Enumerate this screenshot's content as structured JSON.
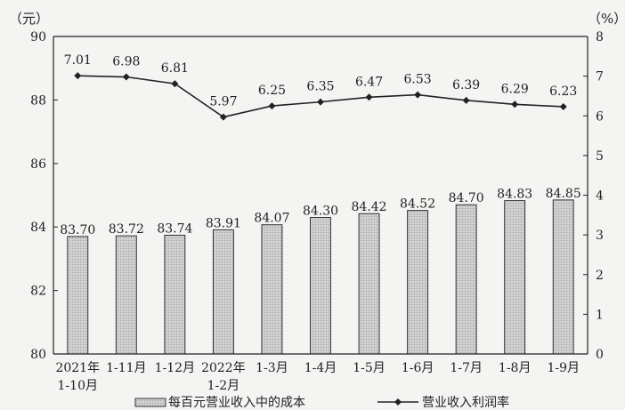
{
  "chart_data": {
    "type": "bar",
    "categories": [
      [
        "2021年",
        "1-10月"
      ],
      [
        "1-11月"
      ],
      [
        "1-12月"
      ],
      [
        "2022年",
        "1-2月"
      ],
      [
        "1-3月"
      ],
      [
        "1-4月"
      ],
      [
        "1-5月"
      ],
      [
        "1-6月"
      ],
      [
        "1-7月"
      ],
      [
        "1-8月"
      ],
      [
        "1-9月"
      ]
    ],
    "left_axis": {
      "unit": "（元）",
      "ylim": [
        80,
        90
      ],
      "ticks": [
        "80",
        "82",
        "84",
        "86",
        "88",
        "90"
      ]
    },
    "right_axis": {
      "unit": "（%）",
      "ylim": [
        0,
        8
      ],
      "ticks": [
        "0",
        "1",
        "2",
        "3",
        "4",
        "5",
        "6",
        "7",
        "8"
      ]
    },
    "series": [
      {
        "name": "每百元营业收入中的成本",
        "type": "bar",
        "axis": "left",
        "values": [
          83.7,
          83.72,
          83.74,
          83.91,
          84.07,
          84.3,
          84.42,
          84.52,
          84.7,
          84.83,
          84.85
        ],
        "labels": [
          "83.70",
          "83.72",
          "83.74",
          "83.91",
          "84.07",
          "84.30",
          "84.42",
          "84.52",
          "84.70",
          "84.83",
          "84.85"
        ]
      },
      {
        "name": "营业收入利润率",
        "type": "line",
        "axis": "right",
        "values": [
          7.01,
          6.98,
          6.81,
          5.97,
          6.25,
          6.35,
          6.47,
          6.53,
          6.39,
          6.29,
          6.23
        ],
        "labels": [
          "7.01",
          "6.98",
          "6.81",
          "5.97",
          "6.25",
          "6.35",
          "6.47",
          "6.53",
          "6.39",
          "6.29",
          "6.23"
        ]
      }
    ],
    "legend_position": "bottom",
    "grid": false,
    "colors": {
      "bar_fill": "#c8c8c8",
      "bar_stroke": "#333333",
      "line": "#222222",
      "axis": "#222222"
    }
  }
}
